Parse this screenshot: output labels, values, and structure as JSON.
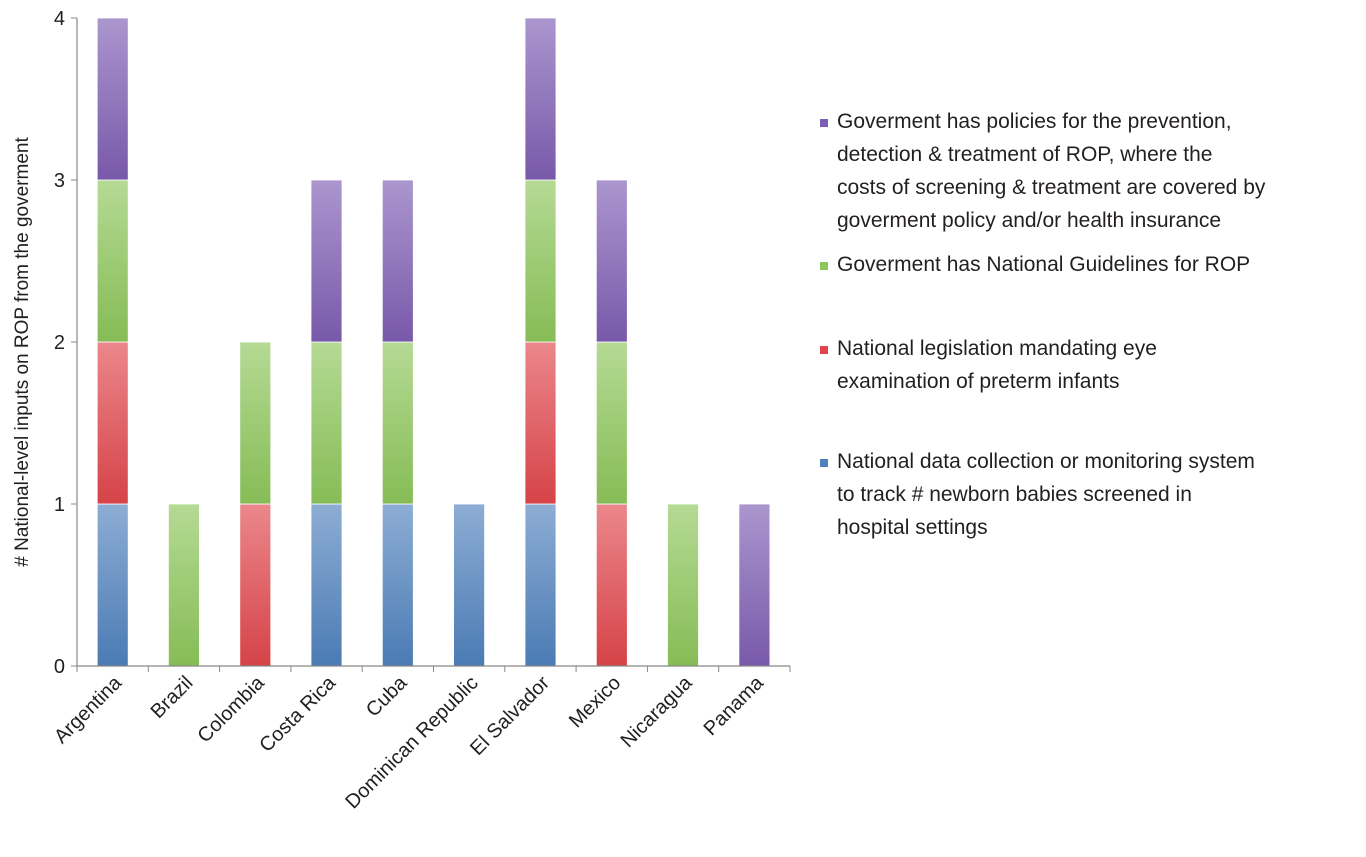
{
  "chart_data": {
    "type": "bar",
    "stacked": true,
    "categories": [
      "Argentina",
      "Brazil",
      "Colombia",
      "Costa Rica",
      "Cuba",
      "Dominican Republic",
      "El Salvador",
      "Mexico",
      "Nicaragua",
      "Panama"
    ],
    "series": [
      {
        "name": "National data collection or monitoring system to track # newborn babies screened in hospital settings",
        "color": "#4f81bd",
        "values": [
          1,
          0,
          0,
          1,
          1,
          1,
          1,
          0,
          0,
          0
        ]
      },
      {
        "name": "National legislation mandating eye examination of preterm infants",
        "color": "#e0474c",
        "values": [
          1,
          0,
          1,
          0,
          0,
          0,
          1,
          1,
          0,
          0
        ]
      },
      {
        "name": "Goverment has National Guidelines for ROP",
        "color": "#8dc65b",
        "values": [
          1,
          1,
          1,
          1,
          1,
          0,
          1,
          1,
          1,
          0
        ]
      },
      {
        "name": "Goverment has policies for the prevention, detection & treatment of ROP, where the costs of screening & treatment are covered by goverment policy and/or health insurance",
        "color": "#7e5eb3",
        "values": [
          1,
          0,
          0,
          1,
          1,
          0,
          1,
          1,
          0,
          1
        ]
      }
    ],
    "title": "",
    "xlabel": "",
    "ylabel": "# National-level inputs on ROP from the goverment",
    "ylim": [
      0,
      4
    ],
    "yticks": [
      "0",
      "1",
      "2",
      "3",
      "4"
    ],
    "grid": false,
    "legend_position": "right",
    "legend": [
      {
        "series": 3,
        "lines": [
          "Goverment has policies for the prevention,",
          "detection & treatment of ROP, where the",
          "costs of screening & treatment are covered by",
          "goverment policy and/or health insurance"
        ]
      },
      {
        "series": 2,
        "lines": [
          "Goverment has National Guidelines for ROP"
        ]
      },
      {
        "series": 1,
        "lines": [
          "National legislation mandating eye",
          "examination of preterm infants"
        ]
      },
      {
        "series": 0,
        "lines": [
          "National data collection or monitoring system",
          "to track # newborn babies screened in",
          "hospital settings"
        ]
      }
    ]
  }
}
